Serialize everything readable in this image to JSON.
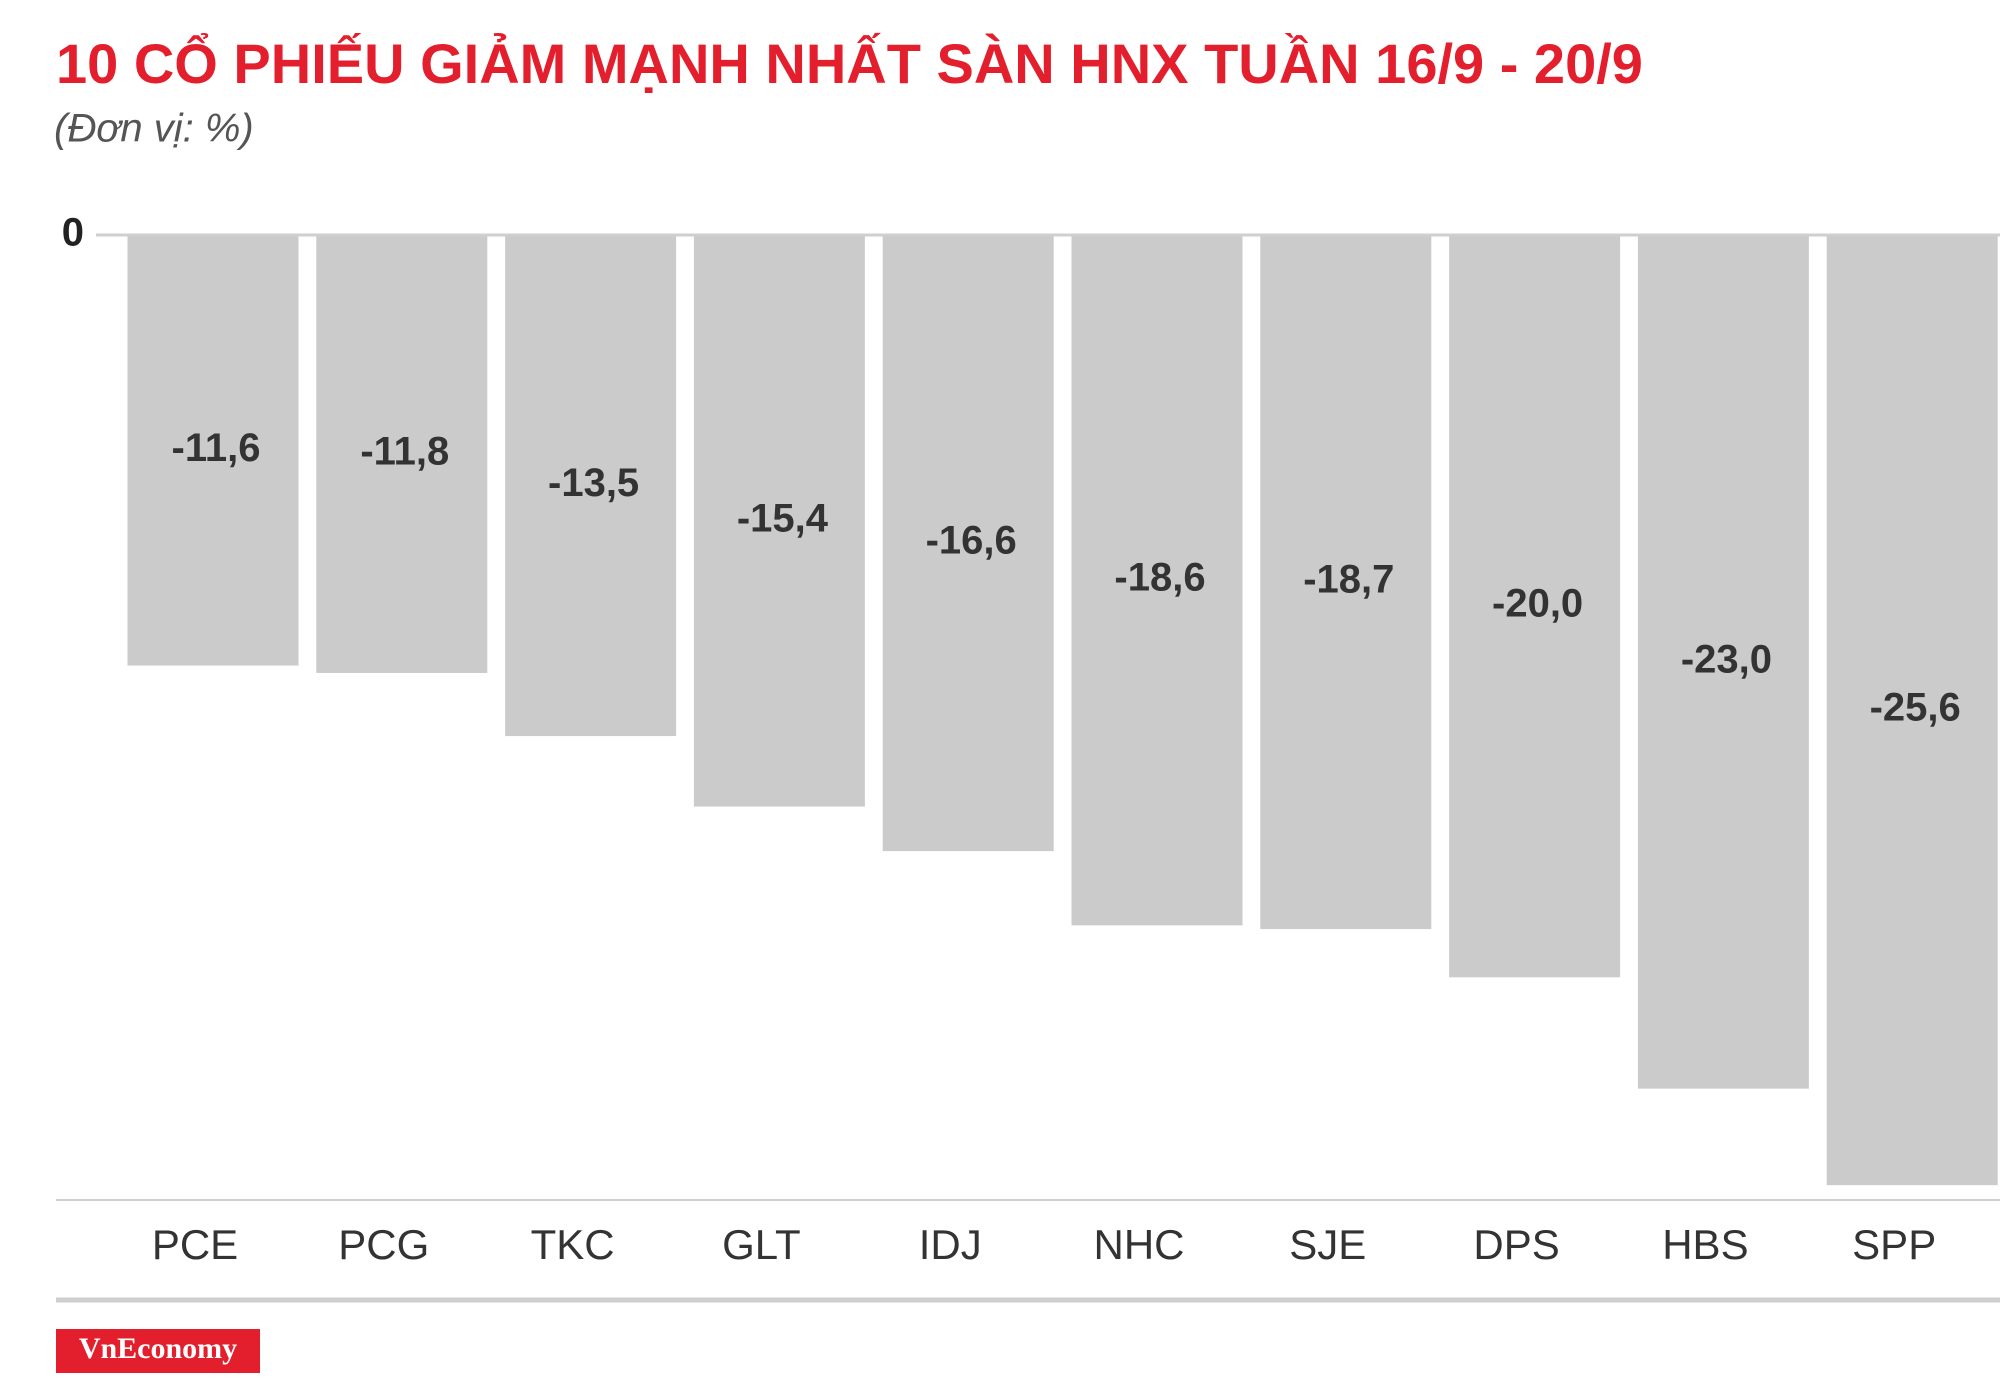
{
  "chart_data": {
    "type": "bar",
    "title": "10 CỔ PHIẾU GIẢM MẠNH NHẤT SÀN HNX TUẦN 16/9 - 20/9",
    "subtitle": "(Đơn vị: %)",
    "categories": [
      "PCE",
      "PCG",
      "TKC",
      "GLT",
      "IDJ",
      "NHC",
      "SJE",
      "DPS",
      "HBS",
      "SPP"
    ],
    "values": [
      -11.6,
      -11.8,
      -13.5,
      -15.4,
      -16.6,
      -18.6,
      -18.7,
      -20.0,
      -23.0,
      -25.6
    ],
    "value_labels": [
      "-11,6",
      "-11,8",
      "-13,5",
      "-15,4",
      "-16,6",
      "-18,6",
      "-18,7",
      "-20,0",
      "-23,0",
      "-25,6"
    ],
    "color": "#cccbcc",
    "ylim": [
      -26,
      0
    ],
    "yticks": [
      0
    ],
    "source": "VnEconomy"
  }
}
